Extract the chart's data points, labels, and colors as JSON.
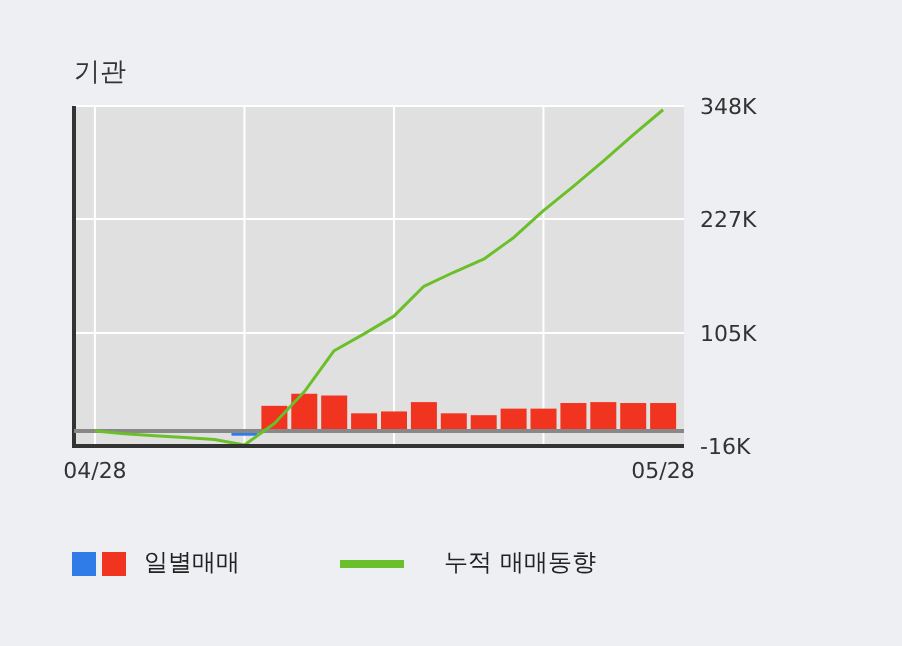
{
  "chart_data": {
    "type": "bar",
    "title": "기관",
    "categories": [
      "04/28",
      null,
      null,
      null,
      null,
      null,
      null,
      null,
      null,
      null,
      null,
      null,
      null,
      null,
      null,
      null,
      null,
      null,
      null,
      "05/28"
    ],
    "series": [
      {
        "name": "일별매매",
        "values": [
          0,
          0,
          0,
          0,
          0,
          -5,
          27,
          40,
          38,
          19,
          21,
          31,
          19,
          17,
          24,
          24,
          30,
          31,
          30,
          30
        ],
        "colors": [
          "#f0341f",
          "#f0341f",
          "#f0341f",
          "#f0341f",
          "#f0341f",
          "#2f7be8",
          "#f0341f",
          "#f0341f",
          "#f0341f",
          "#f0341f",
          "#f0341f",
          "#f0341f",
          "#f0341f",
          "#f0341f",
          "#f0341f",
          "#f0341f",
          "#f0341f",
          "#f0341f",
          "#f0341f",
          "#f0341f"
        ]
      },
      {
        "name": "누적 매매동향",
        "type": "line",
        "color": "#6abf2a",
        "values": [
          0,
          -3,
          -5,
          -7,
          -9,
          -15,
          8,
          42,
          86,
          104,
          123,
          155,
          170,
          184,
          207,
          236,
          262,
          289,
          317,
          344
        ]
      }
    ],
    "ylim": [
      -16,
      348
    ],
    "yticks": [
      {
        "value": -16,
        "label": "-16K"
      },
      {
        "value": 105,
        "label": "105K"
      },
      {
        "value": 227,
        "label": "227K"
      },
      {
        "value": 348,
        "label": "348K"
      }
    ],
    "ref_lines": [
      {
        "axis": "y",
        "value": 0,
        "color": "#888888"
      }
    ],
    "grid": true,
    "legend": "bottom",
    "marker": "none",
    "line_style": "solid"
  }
}
